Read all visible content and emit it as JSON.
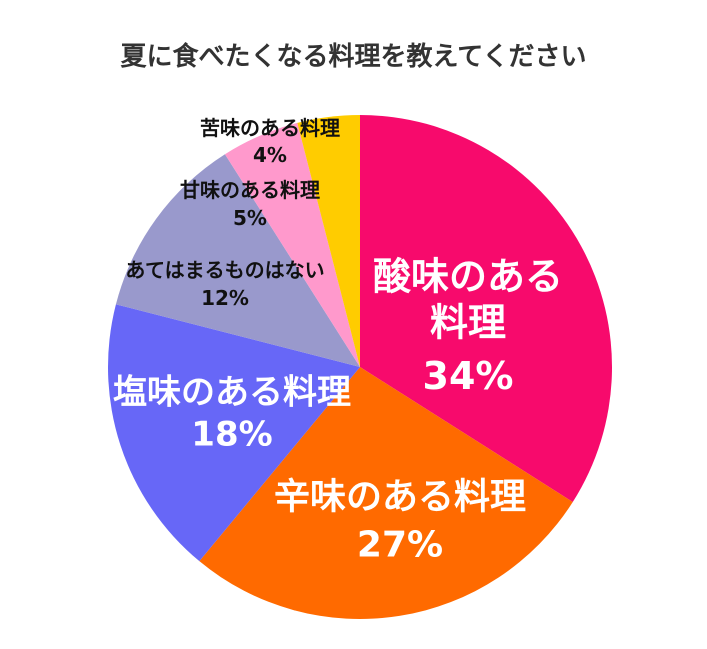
{
  "chart_data": {
    "type": "pie",
    "title": "夏に食べたくなる料理を教えてください",
    "categories": [
      "酸味のある料理",
      "辛味のある料理",
      "塩味のある料理",
      "あてはまるものはない",
      "甘味のある料理",
      "苦味のある料理"
    ],
    "values": [
      34,
      27,
      18,
      12,
      5,
      4
    ],
    "value_labels": [
      "34%",
      "27%",
      "18%",
      "12%",
      "5%",
      "4%"
    ],
    "colors": [
      "#f70a6c",
      "#ff6a00",
      "#6767f7",
      "#9999cc",
      "#ff99cc",
      "#ffcc00"
    ]
  }
}
